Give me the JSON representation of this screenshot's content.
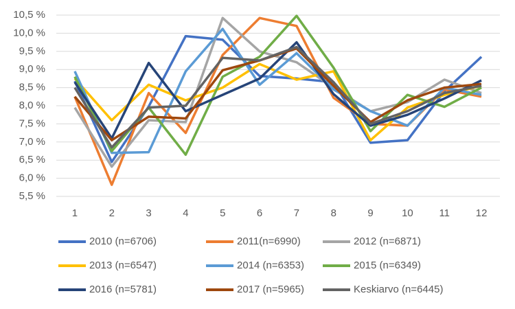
{
  "chart_data": {
    "type": "line",
    "categories": [
      "1",
      "2",
      "3",
      "4",
      "5",
      "6",
      "7",
      "8",
      "9",
      "10",
      "11",
      "12"
    ],
    "ylim": [
      5.5,
      10.5
    ],
    "yticks": [
      {
        "value": 5.5,
        "label": "5,5 %"
      },
      {
        "value": 6.0,
        "label": "6,0 %"
      },
      {
        "value": 6.5,
        "label": "6,5 %"
      },
      {
        "value": 7.0,
        "label": "7,0 %"
      },
      {
        "value": 7.5,
        "label": "7,5 %"
      },
      {
        "value": 8.0,
        "label": "8,0 %"
      },
      {
        "value": 8.5,
        "label": "8,5 %"
      },
      {
        "value": 9.0,
        "label": "9,0 %"
      },
      {
        "value": 9.5,
        "label": "9,5 %"
      },
      {
        "value": 10.0,
        "label": "10,0 %"
      },
      {
        "value": 10.5,
        "label": "10,5 %"
      }
    ],
    "grid": true,
    "legend": "bottom",
    "series": [
      {
        "name": "2010 (n=6706)",
        "color": "#4472c4",
        "values": [
          8.68,
          6.45,
          7.98,
          9.92,
          9.82,
          8.82,
          8.75,
          8.65,
          6.98,
          7.05,
          8.4,
          9.35
        ]
      },
      {
        "name": "2011(n=6990)",
        "color": "#ed7d31",
        "values": [
          8.25,
          5.82,
          8.35,
          7.25,
          9.4,
          10.42,
          10.2,
          8.22,
          7.5,
          7.45,
          8.45,
          8.25
        ]
      },
      {
        "name": "2012 (n=6871)",
        "color": "#a5a5a5",
        "values": [
          7.95,
          6.32,
          7.6,
          7.55,
          10.42,
          9.5,
          9.2,
          8.5,
          7.85,
          8.1,
          8.72,
          8.35
        ]
      },
      {
        "name": "2013 (n=6547)",
        "color": "#ffc000",
        "values": [
          8.75,
          7.6,
          8.58,
          8.15,
          8.5,
          9.15,
          8.72,
          8.95,
          7.05,
          7.95,
          8.3,
          8.55
        ]
      },
      {
        "name": "2014 (n=6353)",
        "color": "#5b9bd5",
        "values": [
          8.95,
          6.7,
          6.72,
          8.95,
          10.12,
          8.58,
          9.45,
          8.45,
          7.85,
          7.45,
          8.5,
          8.3
        ]
      },
      {
        "name": "2015 (n=6349)",
        "color": "#70ad47",
        "values": [
          8.8,
          6.75,
          7.95,
          6.65,
          8.8,
          9.35,
          10.48,
          9.05,
          7.3,
          8.3,
          7.97,
          8.5
        ]
      },
      {
        "name": "2016 (n=5781)",
        "color": "#264478",
        "values": [
          8.65,
          7.1,
          9.18,
          7.85,
          8.3,
          8.75,
          9.75,
          8.32,
          7.45,
          7.75,
          8.2,
          8.7
        ]
      },
      {
        "name": "2017 (n=5965)",
        "color": "#9e480e",
        "values": [
          8.25,
          7.05,
          7.7,
          7.65,
          8.98,
          9.25,
          9.58,
          8.55,
          7.55,
          8.15,
          8.5,
          8.6
        ]
      },
      {
        "name": "Keskiarvo (n=6445)",
        "color": "#636363",
        "values": [
          8.5,
          6.85,
          7.95,
          8.0,
          9.32,
          9.25,
          9.62,
          8.65,
          7.5,
          7.85,
          8.35,
          8.55
        ]
      }
    ]
  }
}
